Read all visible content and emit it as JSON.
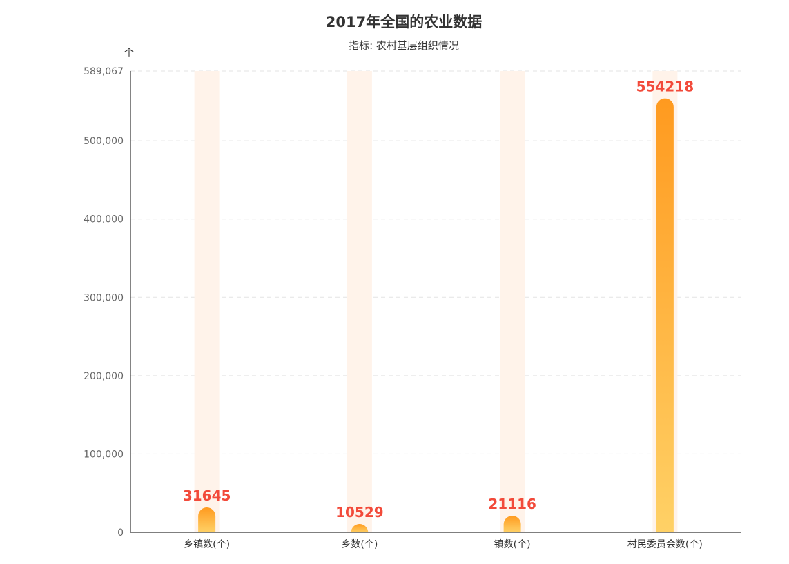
{
  "chart_data": {
    "type": "bar",
    "title": "2017年全国的农业数据",
    "subtitle": "指标: 农村基层组织情况",
    "y_unit": "个",
    "categories": [
      "乡镇数(个)",
      "乡数(个)",
      "镇数(个)",
      "村民委员会数(个)"
    ],
    "values": [
      31645,
      10529,
      21116,
      554218
    ],
    "value_labels": [
      "31645",
      "10529",
      "21116",
      "554218"
    ],
    "ylim": [
      0,
      589067
    ],
    "yticks": [
      0,
      100000,
      200000,
      300000,
      400000,
      500000,
      589067
    ],
    "ytick_labels": [
      "0",
      "100,000",
      "200,000",
      "300,000",
      "400,000",
      "500,000",
      "589,067"
    ],
    "grid": true,
    "colors": {
      "bar_top": "#ff9a1f",
      "bar_bottom": "#ffd166",
      "track": "#fff3ea",
      "value_label": "#f24a3a",
      "axis": "#333333",
      "grid": "#e3e3e3"
    }
  }
}
